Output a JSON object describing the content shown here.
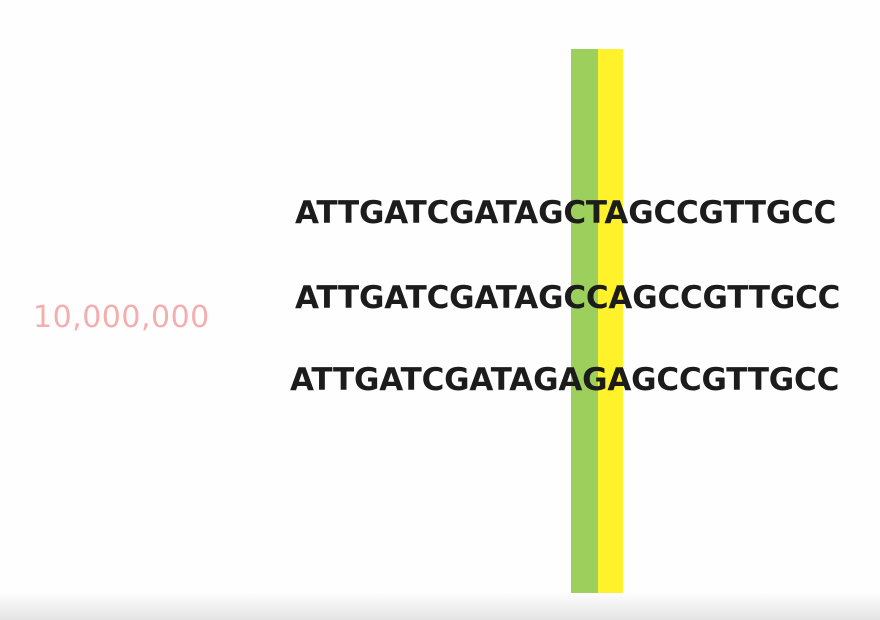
{
  "count_label": "10,000,000",
  "sequences": [
    "ATTGATCGATAGCTAGCCGTTGCC",
    "ATTGATCGATAGCCAGCCGTTGCC",
    "ATTGATCGATAGAGAGCCGTTGCC"
  ],
  "colors": {
    "count_label": "#f2a1a1",
    "highlight_green": "#9ccf5c",
    "highlight_yellow": "#fff12a",
    "sequence_text": "#1c1c1c"
  }
}
